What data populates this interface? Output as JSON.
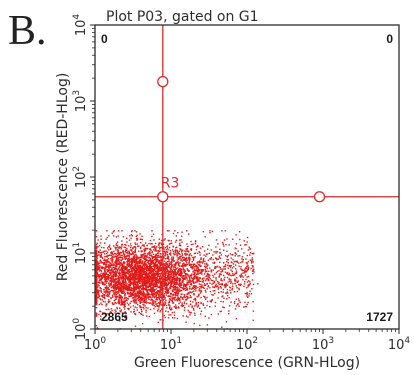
{
  "panel": {
    "letter": "B."
  },
  "chart_data": {
    "type": "scatter",
    "title": "Plot P03, gated on G1",
    "xlabel": "Green Fluorescence (GRN-HLog)",
    "ylabel": "Red Fluorescence (RED-HLog)",
    "xscale": "log",
    "yscale": "log",
    "xlim": [
      1,
      10000
    ],
    "ylim": [
      1,
      10000
    ],
    "ticks": [
      {
        "value": 1,
        "base": "10",
        "exponent": "0"
      },
      {
        "value": 10,
        "base": "10",
        "exponent": "1"
      },
      {
        "value": 100,
        "base": "10",
        "exponent": "2"
      },
      {
        "value": 1000,
        "base": "10",
        "exponent": "3"
      },
      {
        "value": 10000,
        "base": "10",
        "exponent": "4"
      }
    ],
    "grid": false,
    "gate": {
      "label": "R3",
      "x": 7.8,
      "y": 55
    },
    "gate_handles": [
      {
        "x": 7.8,
        "y": 1800
      },
      {
        "x": 7.8,
        "y": 55
      },
      {
        "x": 900,
        "y": 55
      }
    ],
    "quadrant_counts": {
      "upper_left": "0",
      "upper_right": "0",
      "lower_left": "2865",
      "lower_right": "1727"
    },
    "population": {
      "events": 4592,
      "center_x": 4.5,
      "center_y": 5,
      "spread_x_log": 0.38,
      "spread_y_log": 0.21,
      "x_range": [
        1,
        1000
      ],
      "y_range": [
        1,
        20
      ]
    },
    "colors": {
      "points": "#e11a1a",
      "gate": "#dd2a2a",
      "frame": "#2b2b2b",
      "text": "#2d2d2d"
    }
  }
}
